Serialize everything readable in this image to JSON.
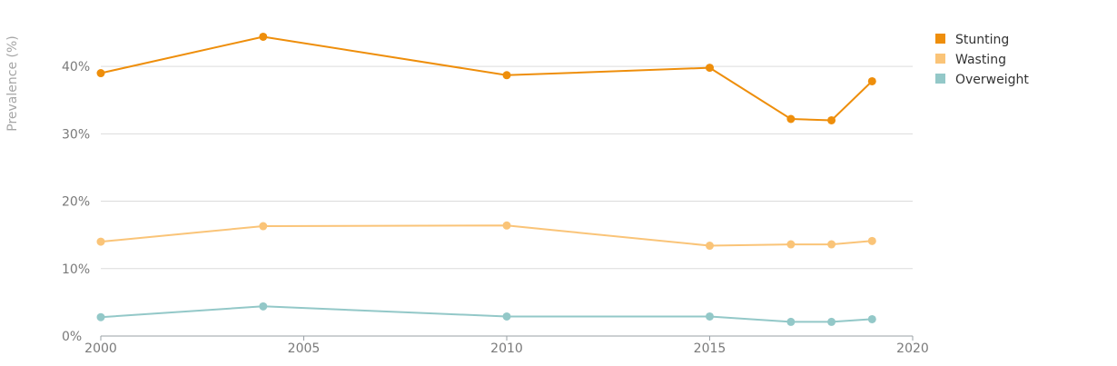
{
  "chart_data": {
    "type": "line",
    "ylabel": "Prevalence (%)",
    "xlim": [
      2000,
      2020
    ],
    "ylim": [
      0,
      45
    ],
    "x_ticks": [
      2000,
      2005,
      2010,
      2015,
      2020
    ],
    "x_tick_labels": [
      "2000",
      "2005",
      "2010",
      "2015",
      "2020"
    ],
    "y_ticks": [
      0,
      10,
      20,
      30,
      40
    ],
    "y_tick_labels": [
      "0%",
      "10%",
      "20%",
      "30%",
      "40%"
    ],
    "grid": "horizontal",
    "legend_position": "top-right",
    "series": [
      {
        "name": "Stunting",
        "color": "#EE8E0B",
        "points": [
          [
            2000,
            39.0
          ],
          [
            2004,
            44.4
          ],
          [
            2010,
            38.7
          ],
          [
            2015,
            39.8
          ],
          [
            2017,
            32.2
          ],
          [
            2018,
            32.0
          ],
          [
            2019,
            37.8
          ]
        ]
      },
      {
        "name": "Wasting",
        "color": "#FAC478",
        "points": [
          [
            2000,
            14.0
          ],
          [
            2004,
            16.3
          ],
          [
            2010,
            16.4
          ],
          [
            2015,
            13.4
          ],
          [
            2017,
            13.6
          ],
          [
            2018,
            13.6
          ],
          [
            2019,
            14.1
          ]
        ]
      },
      {
        "name": "Overweight",
        "color": "#93C8C8",
        "points": [
          [
            2000,
            2.8
          ],
          [
            2004,
            4.4
          ],
          [
            2010,
            2.9
          ],
          [
            2015,
            2.9
          ],
          [
            2017,
            2.1
          ],
          [
            2018,
            2.1
          ],
          [
            2019,
            2.5
          ]
        ]
      }
    ]
  }
}
